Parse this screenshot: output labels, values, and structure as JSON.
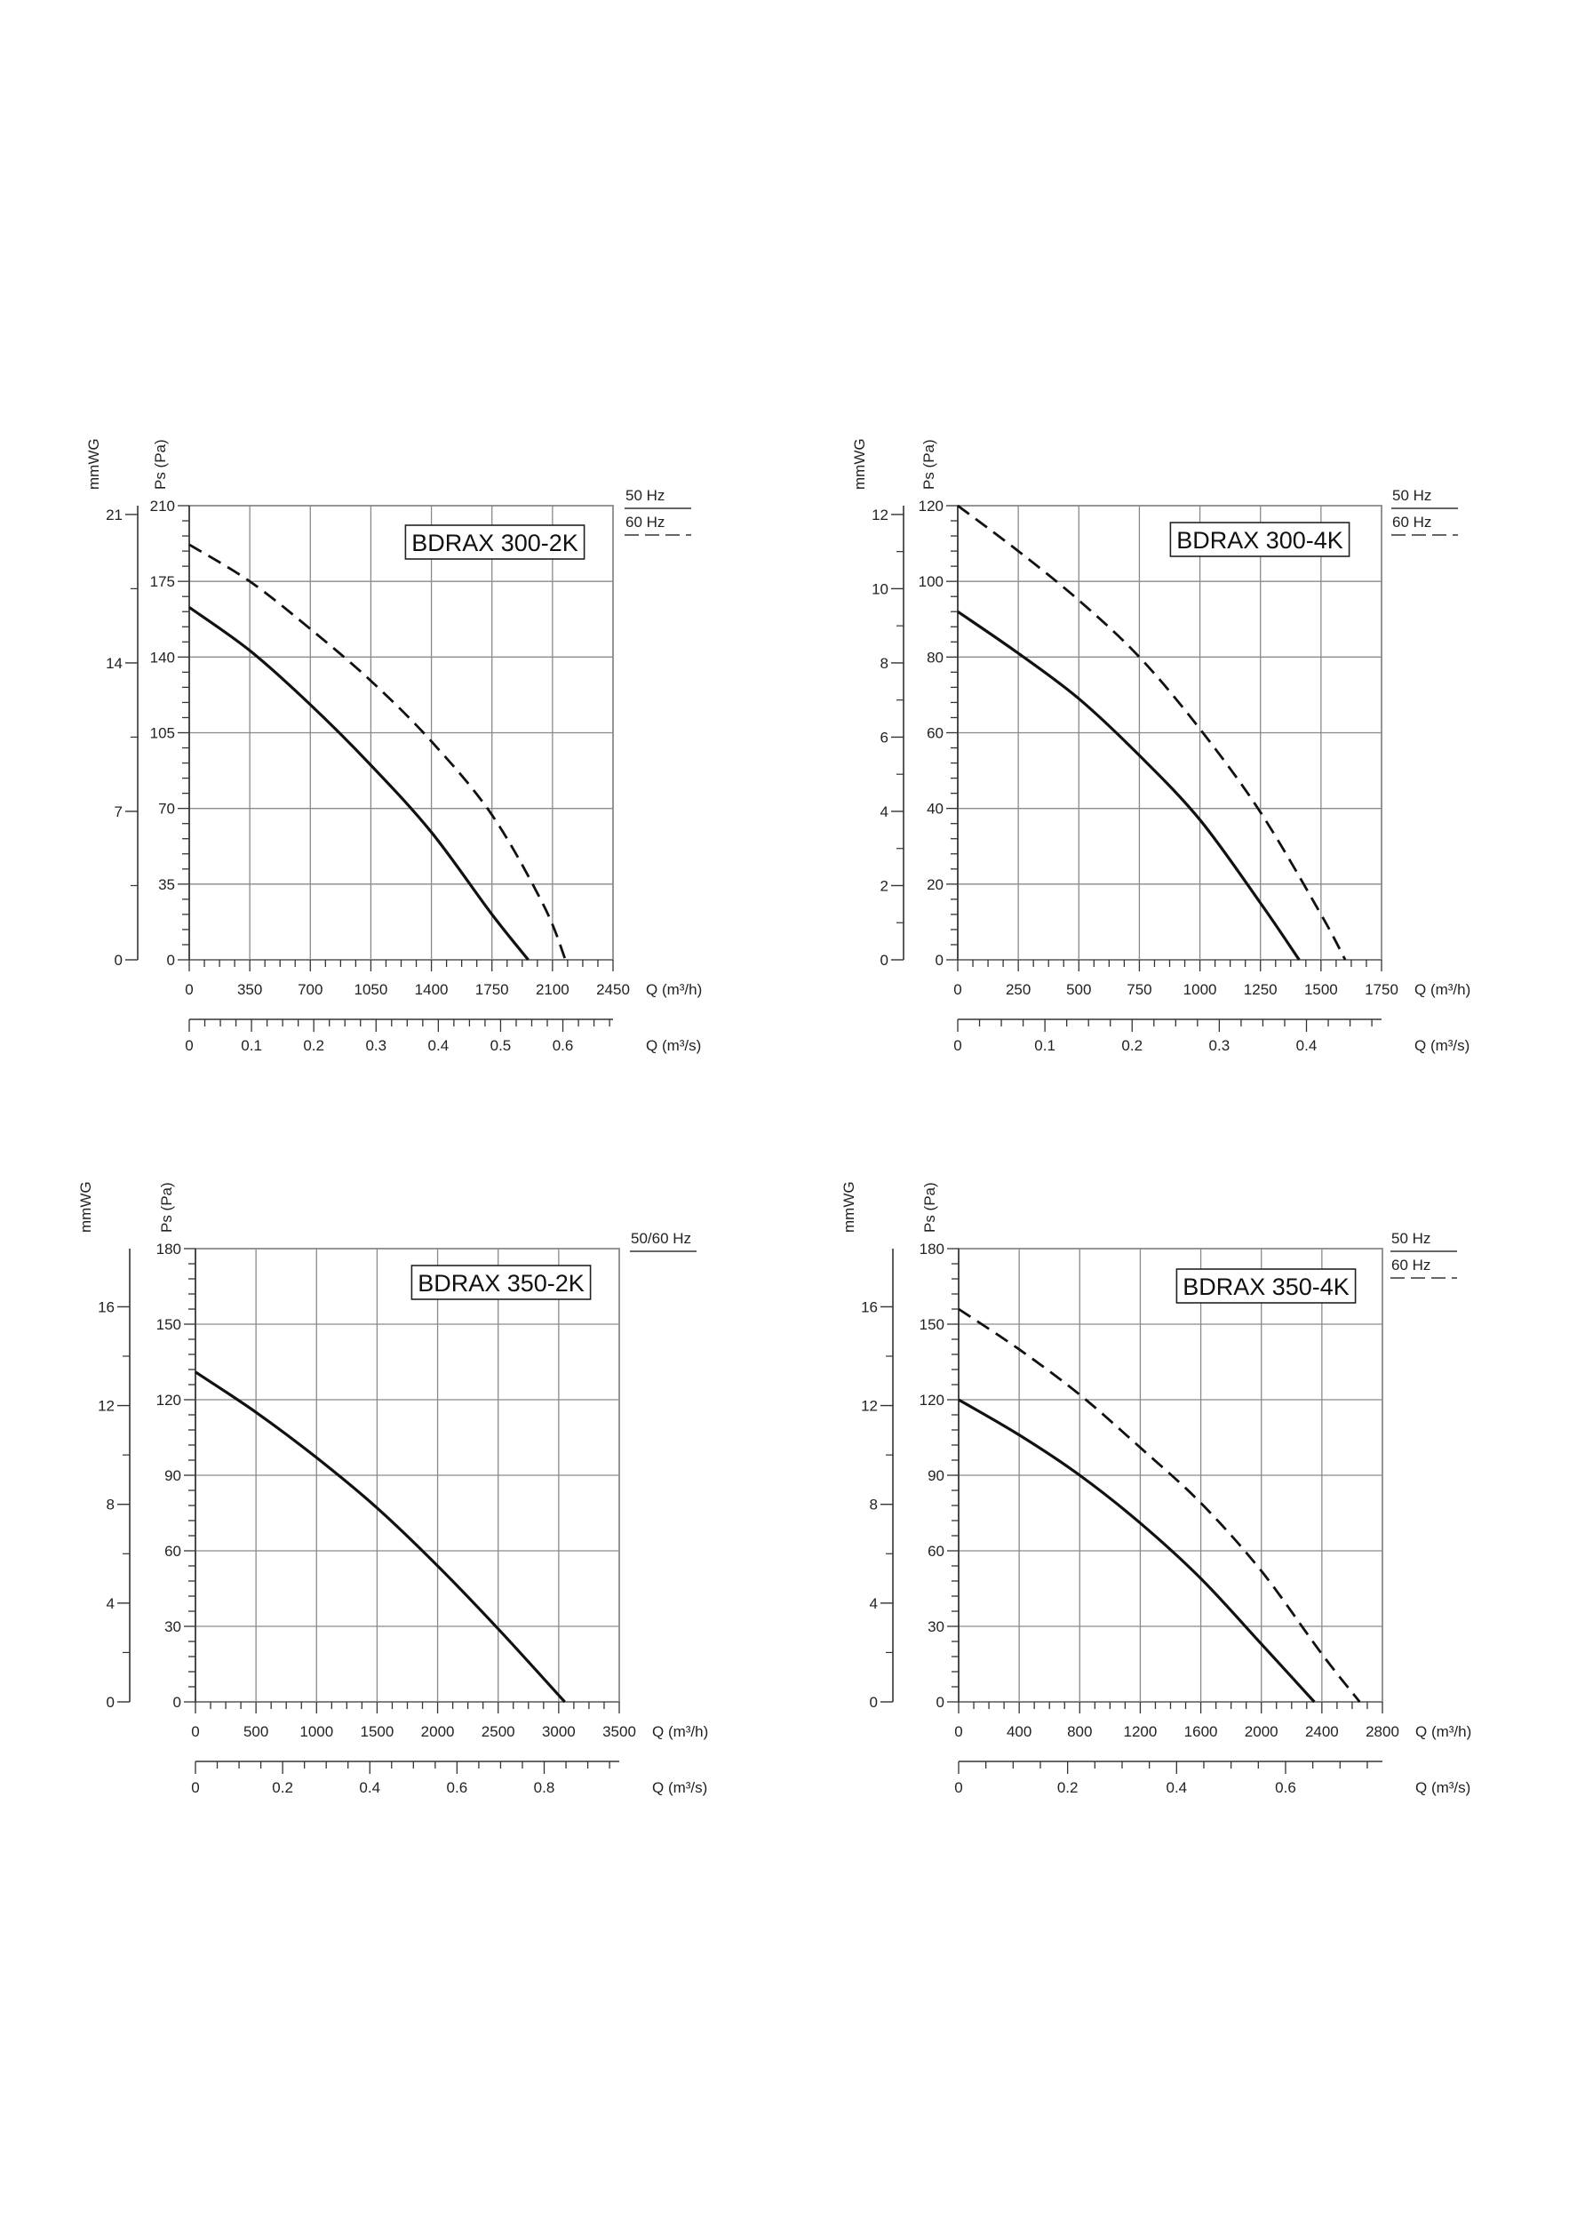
{
  "chart_data": [
    {
      "type": "line",
      "model": "BDRAX 300-2K",
      "legend": [
        "50 Hz",
        "60 Hz"
      ],
      "ylabel_pa": "Ps (Pa)",
      "ylabel_mmwg": "mmWG",
      "xlabel_m3h": "Q (m³/h)",
      "xlabel_m3s": "Q (m³/s)",
      "x_ticks": [
        0,
        350,
        700,
        1050,
        1400,
        1750,
        2100,
        2450
      ],
      "x_tick_labels": [
        "0",
        "350",
        "700",
        "1050",
        "1400",
        "1750",
        "2100",
        "2450"
      ],
      "xlim": [
        0,
        2450
      ],
      "y_ticks": [
        0,
        35,
        70,
        105,
        140,
        175,
        210
      ],
      "y_tick_labels": [
        "0",
        "35",
        "70",
        "105",
        "140",
        "175",
        "210"
      ],
      "ylim": [
        0,
        210
      ],
      "mmwg_ticks": [
        0,
        7,
        14,
        21
      ],
      "mmwg_tick_labels": [
        "0",
        "7",
        "14",
        "21"
      ],
      "m3s_ticks": [
        0,
        0.1,
        0.2,
        0.3,
        0.4,
        0.5,
        0.6
      ],
      "m3s_tick_labels": [
        "0",
        "0.1",
        "0.2",
        "0.3",
        "0.4",
        "0.5",
        "0.6"
      ],
      "grid": true,
      "series": [
        {
          "name": "50 Hz",
          "style": "solid",
          "x": [
            0,
            350,
            700,
            1050,
            1400,
            1750,
            1960
          ],
          "y": [
            163,
            143,
            118,
            90,
            59,
            21,
            0
          ]
        },
        {
          "name": "60 Hz",
          "style": "dashed",
          "x": [
            0,
            350,
            700,
            1050,
            1400,
            1750,
            2050,
            2175
          ],
          "y": [
            192,
            175,
            153,
            129,
            101,
            67,
            25,
            0
          ]
        }
      ]
    },
    {
      "type": "line",
      "model": "BDRAX 300-4K",
      "legend": [
        "50 Hz",
        "60 Hz"
      ],
      "ylabel_pa": "Ps (Pa)",
      "ylabel_mmwg": "mmWG",
      "xlabel_m3h": "Q (m³/h)",
      "xlabel_m3s": "Q (m³/s)",
      "x_ticks": [
        0,
        250,
        500,
        750,
        1000,
        1250,
        1500,
        1750
      ],
      "x_tick_labels": [
        "0",
        "250",
        "500",
        "750",
        "1000",
        "1250",
        "1500",
        "1750"
      ],
      "xlim": [
        0,
        1750
      ],
      "y_ticks": [
        0,
        20,
        40,
        60,
        80,
        100,
        120
      ],
      "y_tick_labels": [
        "0",
        "20",
        "40",
        "60",
        "80",
        "100",
        "120"
      ],
      "ylim": [
        0,
        120
      ],
      "mmwg_ticks": [
        0,
        2,
        4,
        6,
        8,
        10,
        12
      ],
      "mmwg_tick_labels": [
        "0",
        "2",
        "4",
        "6",
        "8",
        "10",
        "12"
      ],
      "m3s_ticks": [
        0,
        0.1,
        0.2,
        0.3,
        0.4
      ],
      "m3s_tick_labels": [
        "0",
        "0.1",
        "0.2",
        "0.3",
        "0.4"
      ],
      "grid": true,
      "series": [
        {
          "name": "50 Hz",
          "style": "solid",
          "x": [
            0,
            250,
            500,
            750,
            1000,
            1250,
            1410
          ],
          "y": [
            92,
            81,
            69,
            54,
            37,
            15,
            0
          ]
        },
        {
          "name": "60 Hz",
          "style": "dashed",
          "x": [
            0,
            250,
            500,
            750,
            1000,
            1250,
            1500,
            1600
          ],
          "y": [
            120,
            108,
            95,
            80,
            61,
            39,
            12,
            0
          ]
        }
      ]
    },
    {
      "type": "line",
      "model": "BDRAX 350-2K",
      "legend": [
        "50/60 Hz"
      ],
      "ylabel_pa": "Ps (Pa)",
      "ylabel_mmwg": "mmWG",
      "xlabel_m3h": "Q (m³/h)",
      "xlabel_m3s": "Q (m³/s)",
      "x_ticks": [
        0,
        500,
        1000,
        1500,
        2000,
        2500,
        3000,
        3500
      ],
      "x_tick_labels": [
        "0",
        "500",
        "1000",
        "1500",
        "2000",
        "2500",
        "3000",
        "3500"
      ],
      "xlim": [
        0,
        3500
      ],
      "y_ticks": [
        0,
        30,
        60,
        90,
        120,
        150,
        180
      ],
      "y_tick_labels": [
        "0",
        "30",
        "60",
        "90",
        "120",
        "150",
        "180"
      ],
      "ylim": [
        0,
        180
      ],
      "mmwg_ticks": [
        0,
        4,
        8,
        12,
        16
      ],
      "mmwg_tick_labels": [
        "0",
        "4",
        "8",
        "12",
        "16"
      ],
      "m3s_ticks": [
        0,
        0.2,
        0.4,
        0.6,
        0.8
      ],
      "m3s_tick_labels": [
        "0",
        "0.2",
        "0.4",
        "0.6",
        "0.8"
      ],
      "grid": true,
      "series": [
        {
          "name": "50/60 Hz",
          "style": "solid",
          "x": [
            0,
            500,
            1000,
            1500,
            2000,
            2500,
            3050
          ],
          "y": [
            131,
            115,
            97,
            77,
            54,
            29,
            0
          ]
        }
      ]
    },
    {
      "type": "line",
      "model": "BDRAX 350-4K",
      "legend": [
        "50 Hz",
        "60 Hz"
      ],
      "ylabel_pa": "Ps (Pa)",
      "ylabel_mmwg": "mmWG",
      "xlabel_m3h": "Q (m³/h)",
      "xlabel_m3s": "Q (m³/s)",
      "x_ticks": [
        0,
        400,
        800,
        1200,
        1600,
        2000,
        2400,
        2800
      ],
      "x_tick_labels": [
        "0",
        "400",
        "800",
        "1200",
        "1600",
        "2000",
        "2400",
        "2800"
      ],
      "xlim": [
        0,
        2800
      ],
      "y_ticks": [
        0,
        30,
        60,
        90,
        120,
        150,
        180
      ],
      "y_tick_labels": [
        "0",
        "30",
        "60",
        "90",
        "120",
        "150",
        "180"
      ],
      "ylim": [
        0,
        180
      ],
      "mmwg_ticks": [
        0,
        4,
        8,
        12,
        16
      ],
      "mmwg_tick_labels": [
        "0",
        "4",
        "8",
        "12",
        "16"
      ],
      "m3s_ticks": [
        0,
        0.2,
        0.4,
        0.6
      ],
      "m3s_tick_labels": [
        "0",
        "0.2",
        "0.4",
        "0.6"
      ],
      "grid": true,
      "series": [
        {
          "name": "50 Hz",
          "style": "solid",
          "x": [
            0,
            400,
            800,
            1200,
            1600,
            2000,
            2350
          ],
          "y": [
            120,
            106,
            90,
            71,
            49,
            23,
            0
          ]
        },
        {
          "name": "60 Hz",
          "style": "dashed",
          "x": [
            0,
            400,
            800,
            1200,
            1600,
            2000,
            2400,
            2650
          ],
          "y": [
            156,
            140,
            122,
            101,
            79,
            52,
            19,
            0
          ]
        }
      ]
    }
  ]
}
